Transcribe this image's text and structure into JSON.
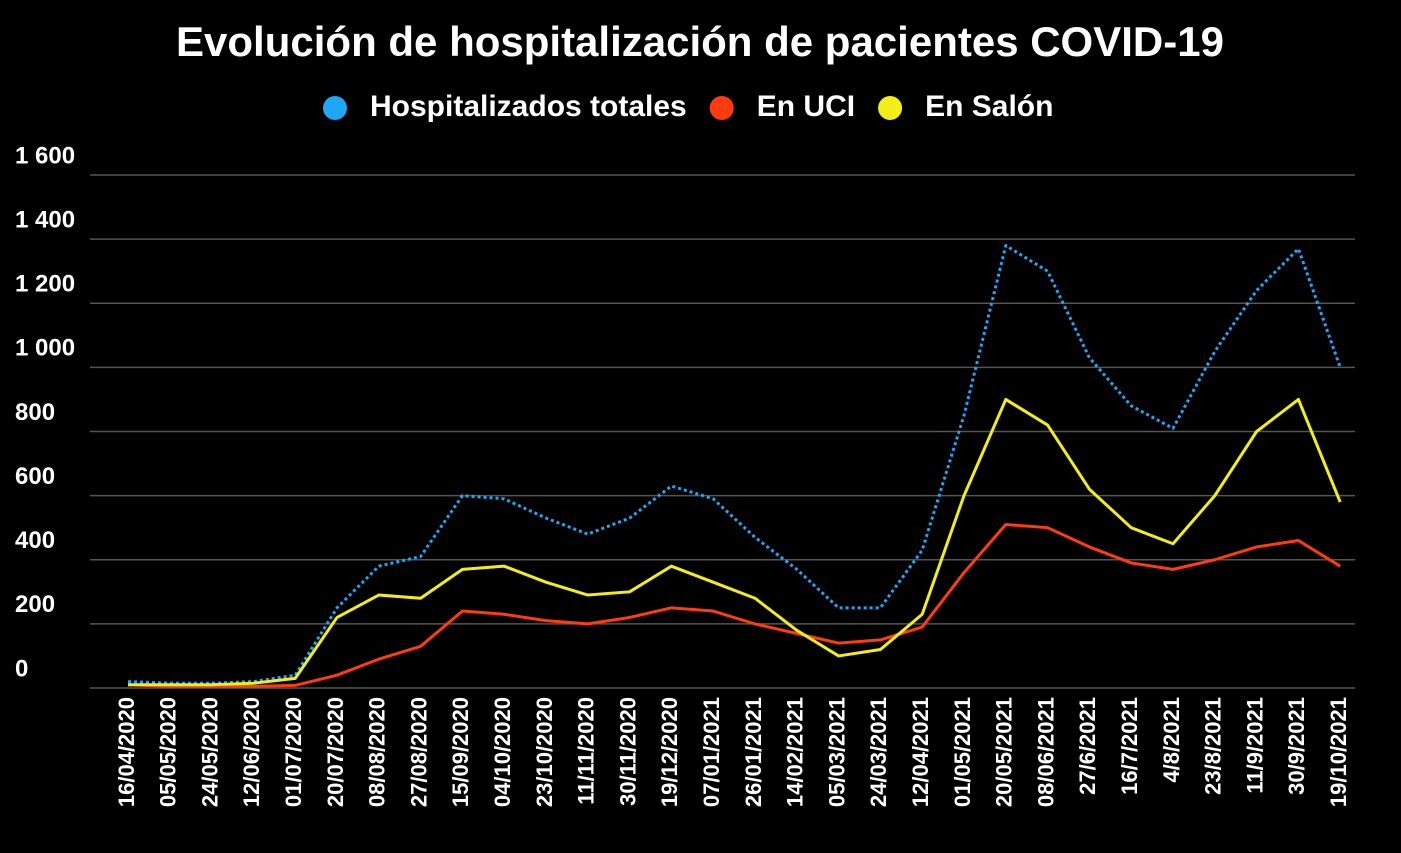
{
  "chart_data": {
    "type": "line",
    "title": "Evolución de hospitalización de pacientes COVID-19",
    "categories": [
      "16/04/2020",
      "05/05/2020",
      "24/05/2020",
      "12/06/2020",
      "01/07/2020",
      "20/07/2020",
      "08/08/2020",
      "27/08/2020",
      "15/09/2020",
      "04/10/2020",
      "23/10/2020",
      "11/11/2020",
      "30/11/2020",
      "19/12/2020",
      "07/01/2021",
      "26/01/2021",
      "14/02/2021",
      "05/03/2021",
      "24/03/2021",
      "12/04/2021",
      "01/05/2021",
      "20/05/2021",
      "08/06/2021",
      "27/6/2021",
      "16/7/2021",
      "4/8/2021",
      "23/8/2021",
      "11/9/2021",
      "30/9/2021",
      "19/10/2021"
    ],
    "series": [
      {
        "name": "Hospitalizados totales",
        "color": "#1ea7f5",
        "dash": true,
        "values": [
          20,
          15,
          15,
          20,
          40,
          250,
          380,
          410,
          600,
          590,
          530,
          480,
          530,
          630,
          590,
          470,
          370,
          250,
          250,
          430,
          850,
          1380,
          1300,
          1030,
          880,
          810,
          1050,
          1240,
          1370,
          1000
        ]
      },
      {
        "name": "En UCI",
        "color": "#ff3b0f",
        "values": [
          10,
          5,
          5,
          5,
          8,
          40,
          90,
          130,
          240,
          230,
          210,
          200,
          220,
          250,
          240,
          200,
          170,
          140,
          150,
          190,
          360,
          510,
          500,
          440,
          390,
          370,
          400,
          440,
          460,
          380
        ]
      },
      {
        "name": "En Salón",
        "color": "#f2ee16",
        "values": [
          10,
          10,
          10,
          15,
          30,
          220,
          290,
          280,
          370,
          380,
          330,
          290,
          300,
          380,
          330,
          280,
          180,
          100,
          120,
          230,
          600,
          900,
          820,
          620,
          500,
          450,
          600,
          800,
          900,
          580
        ]
      }
    ],
    "ylim": [
      0,
      1600
    ],
    "yticks": [
      0,
      200,
      400,
      600,
      800,
      {
        "value": 1000,
        "label": "1 000"
      },
      {
        "value": 1200,
        "label": "1 200"
      },
      {
        "value": 1400,
        "label": "1 400"
      },
      {
        "value": 1600,
        "label": "1 600"
      }
    ],
    "grid": true
  }
}
